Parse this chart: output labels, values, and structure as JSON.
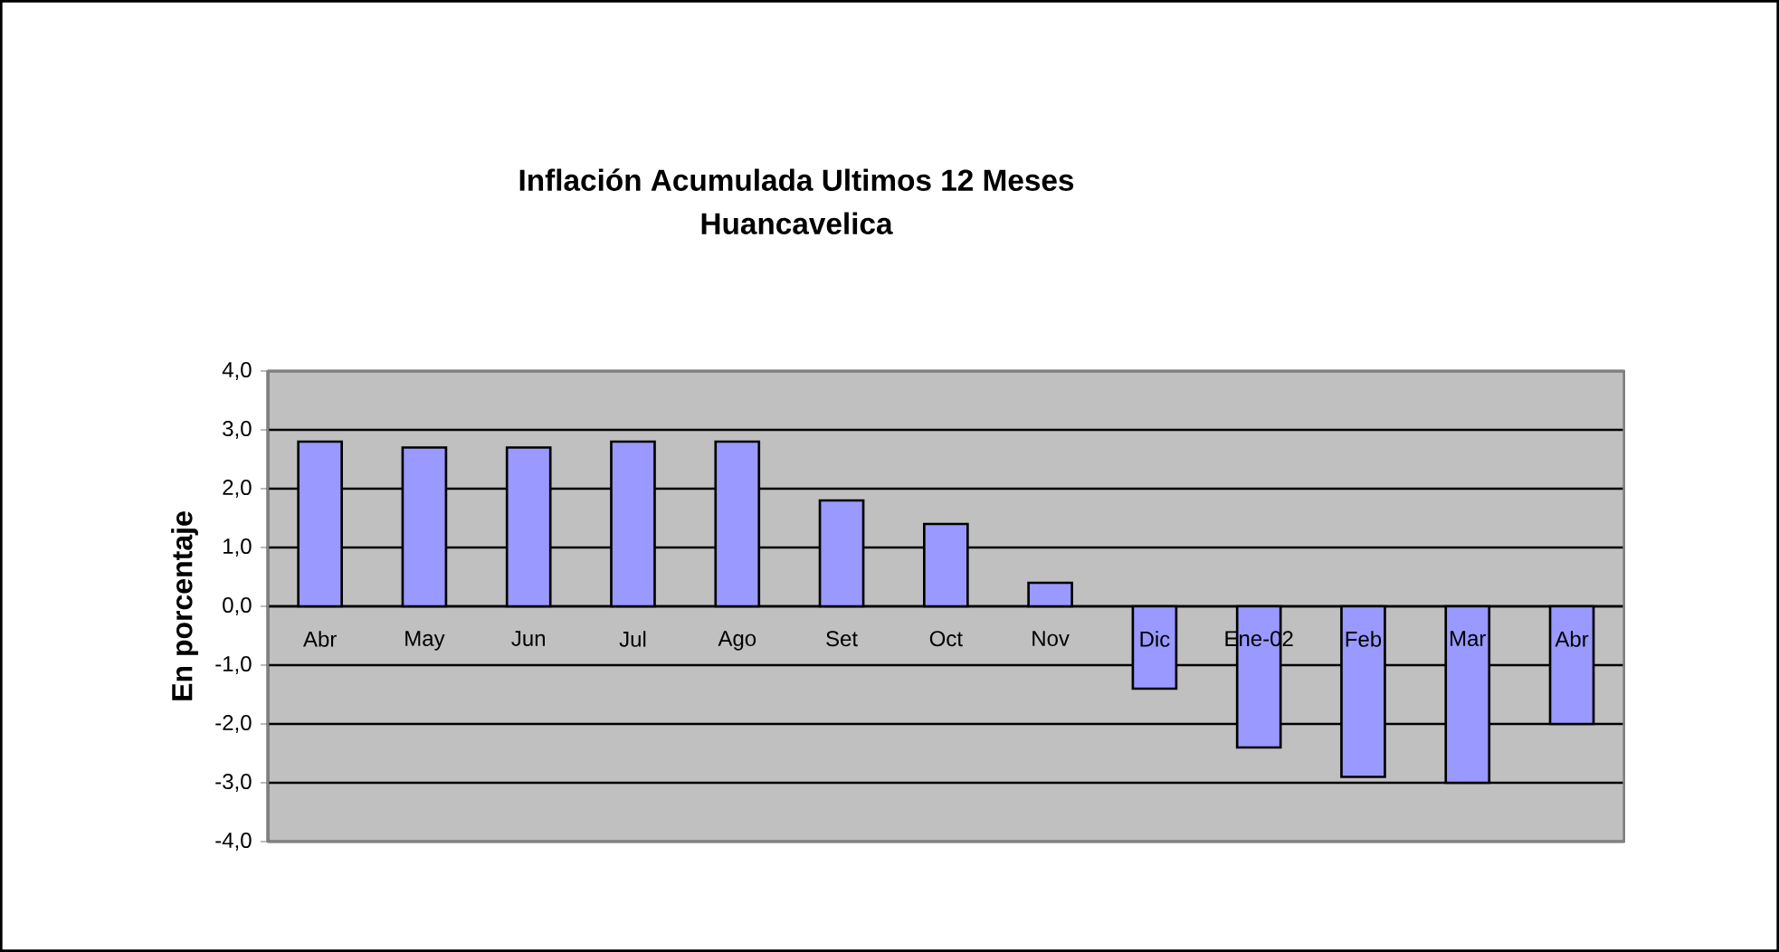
{
  "chart_data": {
    "type": "bar",
    "title": "Inflación Acumulada Ultimos 12 Meses",
    "subtitle": "Huancavelica",
    "ylabel": "En porcentaje",
    "categories": [
      "Abr",
      "May",
      "Jun",
      "Jul",
      "Ago",
      "Set",
      "Oct",
      "Nov",
      "Dic",
      "Ene-02",
      "Feb",
      "Mar",
      "Abr"
    ],
    "values": [
      2.8,
      2.7,
      2.7,
      2.8,
      2.8,
      1.8,
      1.4,
      0.4,
      -1.4,
      -2.4,
      -2.9,
      -3.0,
      -2.0
    ],
    "color": "#9999ff",
    "ylim": [
      -4,
      4
    ],
    "yticks": [
      {
        "value": -4,
        "label": "-4,0"
      },
      {
        "value": -3,
        "label": "-3,0"
      },
      {
        "value": -2,
        "label": "-2,0"
      },
      {
        "value": -1,
        "label": "-1,0"
      },
      {
        "value": 0,
        "label": "0,0"
      },
      {
        "value": 1,
        "label": "1,0"
      },
      {
        "value": 2,
        "label": "2,0"
      },
      {
        "value": 3,
        "label": "3,0"
      },
      {
        "value": 4,
        "label": "4,0"
      }
    ],
    "grid": "y"
  }
}
